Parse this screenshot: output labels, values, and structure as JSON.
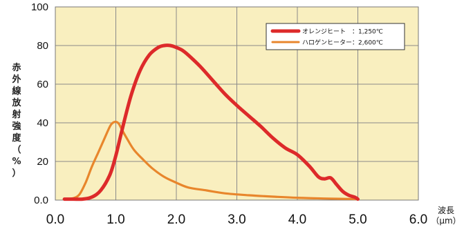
{
  "chart_data": {
    "type": "line",
    "ylabel": "赤外線放射強度（%）",
    "xlabel": "波長",
    "xunit": "（μm）",
    "xlim": [
      0.0,
      6.0
    ],
    "ylim": [
      0,
      100
    ],
    "x_ticks": [
      "0.0",
      "1.0",
      "2.0",
      "3.0",
      "4.0",
      "5.0",
      "6.0"
    ],
    "y_ticks": [
      "0.0",
      "20",
      "40",
      "60",
      "80",
      "100"
    ],
    "grid": true,
    "legend_position": "top-right",
    "plot_background": "#f9efbf",
    "series": [
      {
        "name": "オレンジヒート　：1,250℃",
        "color": "#dd2a2a",
        "x": [
          0.15,
          0.3,
          0.45,
          0.6,
          0.75,
          0.9,
          1.0,
          1.1,
          1.25,
          1.4,
          1.55,
          1.7,
          1.8,
          1.9,
          2.0,
          2.1,
          2.2,
          2.4,
          2.6,
          2.8,
          3.0,
          3.2,
          3.4,
          3.6,
          3.8,
          4.0,
          4.2,
          4.35,
          4.45,
          4.55,
          4.65,
          4.75,
          4.85,
          4.95,
          5.0
        ],
        "y": [
          0.5,
          0.5,
          0.5,
          1.5,
          5,
          13,
          23,
          36,
          54,
          67,
          75,
          79,
          80,
          80,
          79,
          77.5,
          75,
          69,
          62,
          55,
          49,
          43.5,
          38,
          32,
          27,
          23.5,
          17.5,
          12,
          11,
          11.5,
          8,
          4.5,
          2.5,
          1.5,
          0.5
        ]
      },
      {
        "name": "ハロゲンヒーター：2,600℃",
        "color": "#e8862c",
        "x": [
          0.15,
          0.3,
          0.4,
          0.5,
          0.6,
          0.7,
          0.8,
          0.9,
          0.95,
          1.0,
          1.05,
          1.1,
          1.2,
          1.3,
          1.45,
          1.6,
          1.8,
          2.0,
          2.2,
          2.5,
          2.8,
          3.2,
          3.6,
          4.0,
          4.5,
          5.0
        ],
        "y": [
          0.5,
          1,
          3,
          9,
          17,
          24,
          31,
          38,
          40,
          40.5,
          39.5,
          36.5,
          31,
          26,
          21,
          16.5,
          12,
          9,
          6.5,
          5,
          3.5,
          2.5,
          1.8,
          1.2,
          0.8,
          0.5
        ]
      }
    ]
  }
}
